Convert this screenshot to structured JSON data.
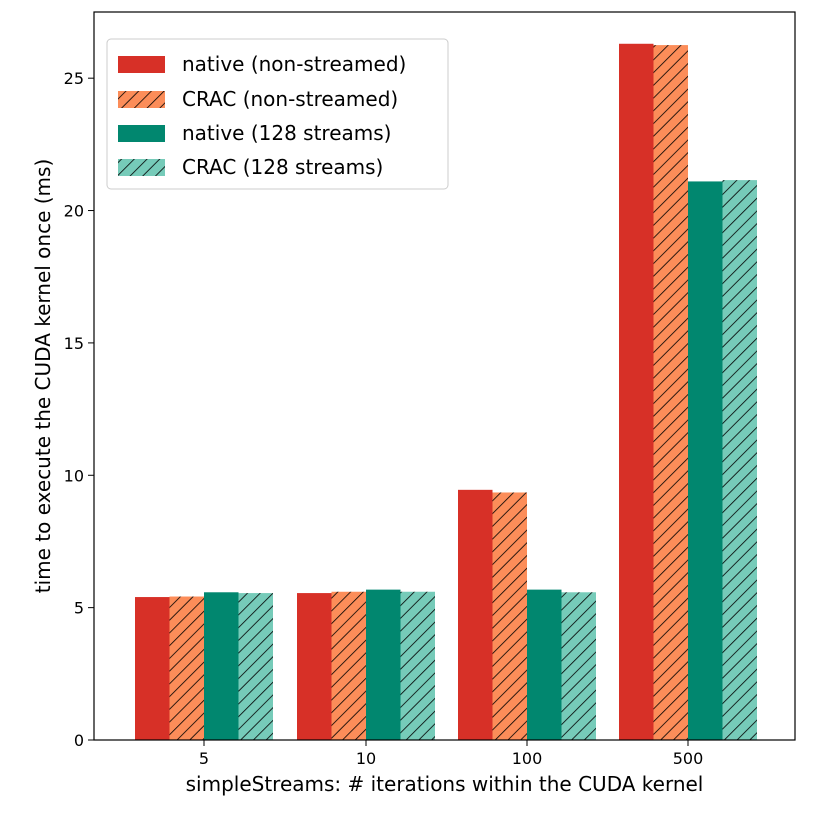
{
  "chart_data": {
    "type": "bar",
    "title": "",
    "xlabel": "simpleStreams: # iterations within the CUDA kernel",
    "ylabel": "time to execute the CUDA kernel once (ms)",
    "categories": [
      "5",
      "10",
      "100",
      "500"
    ],
    "ylim": [
      0,
      27.5
    ],
    "yticks": [
      0,
      5,
      10,
      15,
      20,
      25
    ],
    "grid": false,
    "legend_position": "top-left",
    "series": [
      {
        "name": "native (non-streamed)",
        "color": "#d73027",
        "hatch": false,
        "values": [
          5.4,
          5.55,
          9.45,
          26.3
        ]
      },
      {
        "name": "CRAC (non-streamed)",
        "color": "#fc8d59",
        "hatch": true,
        "values": [
          5.42,
          5.6,
          9.35,
          26.25
        ]
      },
      {
        "name": "native (128 streams)",
        "color": "#01876f",
        "hatch": false,
        "values": [
          5.58,
          5.68,
          5.68,
          21.1
        ]
      },
      {
        "name": "CRAC (128 streams)",
        "color": "#76cbb9",
        "hatch": true,
        "values": [
          5.55,
          5.6,
          5.58,
          21.15
        ]
      }
    ]
  }
}
